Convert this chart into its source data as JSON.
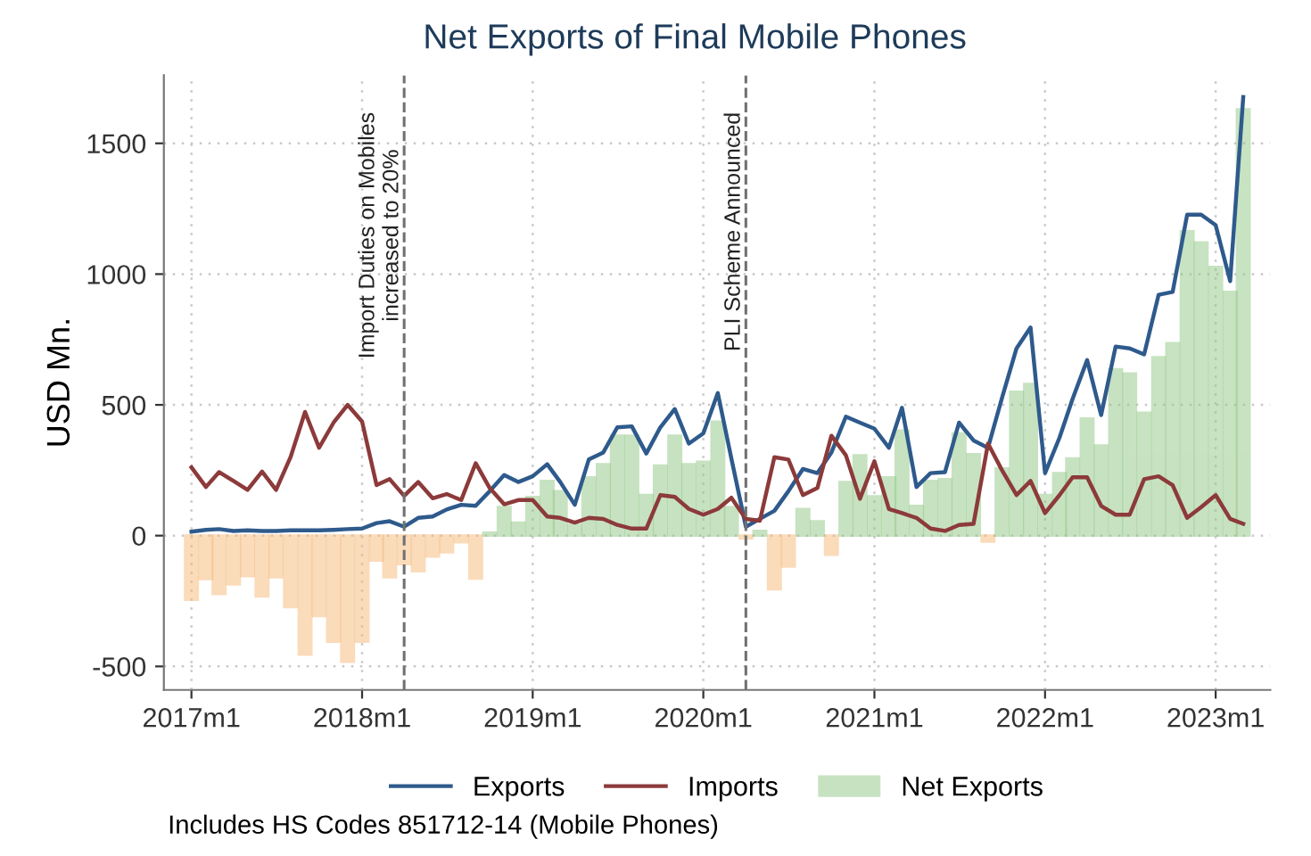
{
  "chart_data": {
    "type": "line",
    "title": "Net Exports of Final Mobile Phones",
    "ylabel": "USD Mn.",
    "x": [
      "2017-01",
      "2017-02",
      "2017-03",
      "2017-04",
      "2017-05",
      "2017-06",
      "2017-07",
      "2017-08",
      "2017-09",
      "2017-10",
      "2017-11",
      "2017-12",
      "2018-01",
      "2018-02",
      "2018-03",
      "2018-04",
      "2018-05",
      "2018-06",
      "2018-07",
      "2018-08",
      "2018-09",
      "2018-10",
      "2018-11",
      "2018-12",
      "2019-01",
      "2019-02",
      "2019-03",
      "2019-04",
      "2019-05",
      "2019-06",
      "2019-07",
      "2019-08",
      "2019-09",
      "2019-10",
      "2019-11",
      "2019-12",
      "2020-01",
      "2020-02",
      "2020-03",
      "2020-04",
      "2020-05",
      "2020-06",
      "2020-07",
      "2020-08",
      "2020-09",
      "2020-10",
      "2020-11",
      "2020-12",
      "2021-01",
      "2021-02",
      "2021-03",
      "2021-04",
      "2021-05",
      "2021-06",
      "2021-07",
      "2021-08",
      "2021-09",
      "2021-10",
      "2021-11",
      "2021-12",
      "2022-01",
      "2022-02",
      "2022-03",
      "2022-04",
      "2022-05",
      "2022-06",
      "2022-07",
      "2022-08",
      "2022-09",
      "2022-10",
      "2022-11",
      "2022-12",
      "2023-01",
      "2023-02",
      "2023-03"
    ],
    "series": [
      {
        "name": "Exports",
        "color": "#2e5a8c",
        "values": [
          15,
          22,
          25,
          18,
          20,
          18,
          18,
          20,
          20,
          20,
          22,
          25,
          27,
          48,
          55,
          34,
          68,
          73,
          100,
          118,
          114,
          170,
          232,
          205,
          227,
          273,
          205,
          118,
          291,
          318,
          414,
          418,
          314,
          414,
          484,
          352,
          391,
          545,
          295,
          34,
          64,
          95,
          170,
          255,
          239,
          318,
          455,
          432,
          409,
          336,
          489,
          186,
          239,
          243,
          432,
          364,
          336,
          527,
          716,
          796,
          239,
          375,
          523,
          671,
          461,
          723,
          716,
          693,
          921,
          932,
          1227,
          1227,
          1187,
          973,
          1677
        ]
      },
      {
        "name": "Imports",
        "color": "#8c3a3a",
        "values": [
          261,
          186,
          243,
          209,
          175,
          245,
          175,
          300,
          473,
          336,
          432,
          500,
          436,
          193,
          216,
          152,
          205,
          143,
          159,
          136,
          277,
          182,
          120,
          136,
          136,
          73,
          68,
          50,
          68,
          64,
          41,
          27,
          27,
          155,
          148,
          102,
          80,
          102,
          145,
          64,
          57,
          300,
          291,
          155,
          182,
          382,
          307,
          141,
          284,
          102,
          86,
          68,
          27,
          18,
          41,
          45,
          352,
          250,
          155,
          209,
          86,
          155,
          223,
          223,
          114,
          80,
          80,
          216,
          227,
          193,
          68,
          109,
          155,
          64,
          45
        ]
      },
      {
        "name": "Net Exports",
        "type": "bar",
        "color": "#90c784",
        "values": [
          -245,
          -166,
          -223,
          -186,
          -155,
          -232,
          -159,
          -273,
          -455,
          -307,
          -405,
          -482,
          -405,
          -95,
          -159,
          -109,
          -136,
          -80,
          -64,
          -25,
          -164,
          11,
          109,
          50,
          148,
          209,
          170,
          41,
          223,
          273,
          382,
          382,
          155,
          268,
          382,
          273,
          282,
          436,
          109,
          -11,
          18,
          -205,
          -118,
          102,
          55,
          -73,
          205,
          307,
          150,
          223,
          402,
          114,
          209,
          216,
          391,
          311,
          -23,
          257,
          550,
          580,
          155,
          239,
          295,
          448,
          345,
          636,
          620,
          470,
          682,
          736,
          1164,
          1121,
          1027,
          932,
          1630
        ],
        "colors": [
          "#f7b878",
          "#f7b878",
          "#f7b878",
          "#f7b878",
          "#f7b878",
          "#f7b878",
          "#f7b878",
          "#f7b878",
          "#f7b878",
          "#f7b878",
          "#f7b878",
          "#f7b878",
          "#f7b878",
          "#f7b878",
          "#f7b878",
          "#f7b878",
          "#f7b878",
          "#f7b878",
          "#f7b878",
          "#f7b878",
          "#f7b878",
          "#90c784",
          "#90c784",
          "#90c784",
          "#90c784",
          "#90c784",
          "#90c784",
          "#90c784",
          "#90c784",
          "#90c784",
          "#90c784",
          "#90c784",
          "#90c784",
          "#90c784",
          "#90c784",
          "#90c784",
          "#90c784",
          "#90c784",
          "#90c784",
          "#f7b878",
          "#90c784",
          "#f7b878",
          "#f7b878",
          "#90c784",
          "#90c784",
          "#f7b878",
          "#90c784",
          "#90c784",
          "#90c784",
          "#90c784",
          "#90c784",
          "#90c784",
          "#90c784",
          "#90c784",
          "#90c784",
          "#90c784",
          "#f7b878",
          "#90c784",
          "#90c784",
          "#90c784",
          "#90c784",
          "#90c784",
          "#90c784",
          "#90c784",
          "#90c784",
          "#90c784",
          "#90c784",
          "#90c784",
          "#90c784",
          "#90c784",
          "#90c784",
          "#90c784",
          "#90c784",
          "#90c784",
          "#90c784"
        ]
      }
    ],
    "xlim": [
      "2016-11-03",
      "2023-04-28"
    ],
    "xticks": [
      {
        "value": "2017-01",
        "label": "2017m1"
      },
      {
        "value": "2018-01",
        "label": "2018m1"
      },
      {
        "value": "2019-01",
        "label": "2019m1"
      },
      {
        "value": "2020-01",
        "label": "2020m1"
      },
      {
        "value": "2021-01",
        "label": "2021m1"
      },
      {
        "value": "2022-01",
        "label": "2022m1"
      },
      {
        "value": "2023-01",
        "label": "2023m1"
      }
    ],
    "ylim": [
      -590,
      1760
    ],
    "yticks": [
      -500,
      0,
      500,
      1000,
      1500
    ],
    "grid": true,
    "legend": "bottom",
    "marker": "none",
    "line_style": "solid",
    "ref_lines": [
      {
        "axis": "x",
        "value": "2018-04",
        "label": "Import Duties on Mobiles\nincreased to 20%",
        "color": "#707070",
        "line_style": "dashed"
      },
      {
        "axis": "x",
        "value": "2020-04",
        "label": "PLI Scheme Announced",
        "color": "#707070",
        "line_style": "dashed"
      }
    ],
    "annotations": [
      "Includes HS Codes 851712-14 (Mobile Phones)"
    ]
  }
}
